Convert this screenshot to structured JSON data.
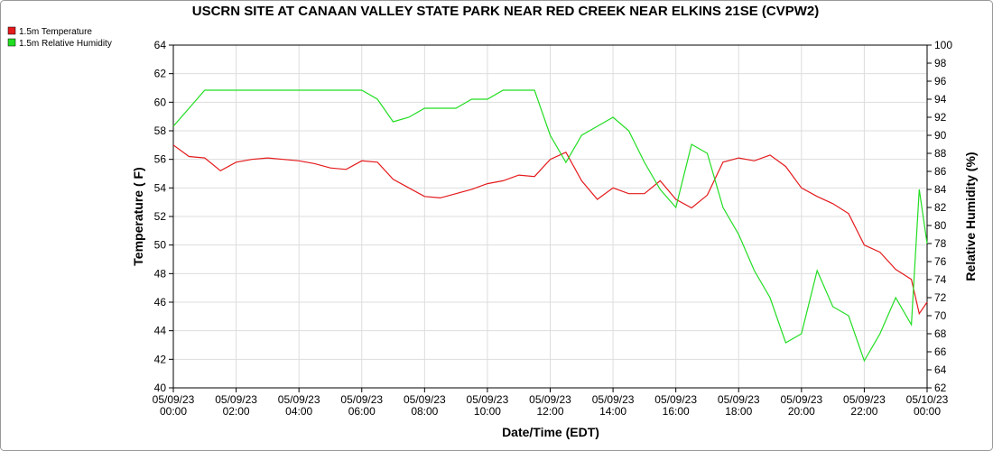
{
  "chart_data": {
    "type": "line",
    "title": "USCRN SITE AT CANAAN VALLEY STATE PARK NEAR RED CREEK NEAR ELKINS 21SE (CVPW2)",
    "x_label": "Date/Time (EDT)",
    "y_label": "Temperature ( F)",
    "y2_label": "Relative Humidity (%)",
    "x": [
      "2023-05-09T00:00",
      "2023-05-09T00:30",
      "2023-05-09T01:00",
      "2023-05-09T01:30",
      "2023-05-09T02:00",
      "2023-05-09T02:30",
      "2023-05-09T03:00",
      "2023-05-09T03:30",
      "2023-05-09T04:00",
      "2023-05-09T04:30",
      "2023-05-09T05:00",
      "2023-05-09T05:30",
      "2023-05-09T06:00",
      "2023-05-09T06:30",
      "2023-05-09T07:00",
      "2023-05-09T07:30",
      "2023-05-09T08:00",
      "2023-05-09T08:30",
      "2023-05-09T09:00",
      "2023-05-09T09:30",
      "2023-05-09T10:00",
      "2023-05-09T10:30",
      "2023-05-09T11:00",
      "2023-05-09T11:30",
      "2023-05-09T12:00",
      "2023-05-09T12:30",
      "2023-05-09T13:00",
      "2023-05-09T13:30",
      "2023-05-09T14:00",
      "2023-05-09T14:30",
      "2023-05-09T15:00",
      "2023-05-09T15:30",
      "2023-05-09T16:00",
      "2023-05-09T16:30",
      "2023-05-09T17:00",
      "2023-05-09T17:30",
      "2023-05-09T18:00",
      "2023-05-09T18:30",
      "2023-05-09T19:00",
      "2023-05-09T19:30",
      "2023-05-09T20:00",
      "2023-05-09T20:30",
      "2023-05-09T21:00",
      "2023-05-09T21:30",
      "2023-05-09T22:00",
      "2023-05-09T22:30",
      "2023-05-09T23:00",
      "2023-05-09T23:30",
      "2023-05-09T23:45",
      "2023-05-10T00:00"
    ],
    "series": [
      {
        "name": "1.5m Temperature",
        "color": "#e41a1c",
        "axis": "y",
        "values": [
          57.0,
          56.2,
          56.1,
          55.2,
          55.8,
          56.0,
          56.1,
          56.0,
          55.9,
          55.7,
          55.4,
          55.3,
          55.9,
          55.8,
          54.6,
          54.0,
          53.4,
          53.3,
          53.6,
          53.9,
          54.3,
          54.5,
          54.9,
          54.8,
          56.0,
          56.5,
          54.5,
          53.2,
          54.0,
          53.6,
          53.6,
          54.5,
          53.2,
          52.6,
          53.5,
          55.8,
          56.1,
          55.9,
          56.3,
          55.5,
          54.0,
          53.4,
          52.9,
          52.2,
          50.0,
          49.5,
          48.3,
          47.6,
          45.2,
          46.0
        ]
      },
      {
        "name": "1.5m Relative Humidity",
        "color": "#22dd22",
        "axis": "y2",
        "values": [
          91,
          93,
          95,
          95,
          95,
          95,
          95,
          95,
          95,
          95,
          95,
          95,
          95,
          94,
          91.5,
          92,
          93,
          93,
          93,
          94,
          94,
          95,
          95,
          95,
          90,
          87,
          90,
          91,
          92,
          90.5,
          87,
          84,
          82,
          89,
          88,
          82,
          79,
          75,
          72,
          67,
          68,
          75,
          71,
          70,
          65,
          68,
          72,
          69,
          84,
          78
        ]
      }
    ],
    "xlim": [
      "2023-05-09T00:00",
      "2023-05-10T00:00"
    ],
    "xticks": [
      {
        "value": "2023-05-09T00:00",
        "label": "05/09/23 00:00"
      },
      {
        "value": "2023-05-09T02:00",
        "label": "05/09/23 02:00"
      },
      {
        "value": "2023-05-09T04:00",
        "label": "05/09/23 04:00"
      },
      {
        "value": "2023-05-09T06:00",
        "label": "05/09/23 06:00"
      },
      {
        "value": "2023-05-09T08:00",
        "label": "05/09/23 08:00"
      },
      {
        "value": "2023-05-09T10:00",
        "label": "05/09/23 10:00"
      },
      {
        "value": "2023-05-09T12:00",
        "label": "05/09/23 12:00"
      },
      {
        "value": "2023-05-09T14:00",
        "label": "05/09/23 14:00"
      },
      {
        "value": "2023-05-09T16:00",
        "label": "05/09/23 16:00"
      },
      {
        "value": "2023-05-09T18:00",
        "label": "05/09/23 18:00"
      },
      {
        "value": "2023-05-09T20:00",
        "label": "05/09/23 20:00"
      },
      {
        "value": "2023-05-09T22:00",
        "label": "05/09/23 22:00"
      },
      {
        "value": "2023-05-10T00:00",
        "label": "05/10/23 00:00"
      }
    ],
    "ylim": [
      40,
      64
    ],
    "yticks": [
      40,
      42,
      44,
      46,
      48,
      50,
      52,
      54,
      56,
      58,
      60,
      62,
      64
    ],
    "y2lim": [
      62,
      100
    ],
    "y2ticks": [
      62,
      64,
      66,
      68,
      70,
      72,
      74,
      76,
      78,
      80,
      82,
      84,
      86,
      88,
      90,
      92,
      94,
      96,
      98,
      100
    ],
    "grid": true,
    "legend": "top-left"
  }
}
